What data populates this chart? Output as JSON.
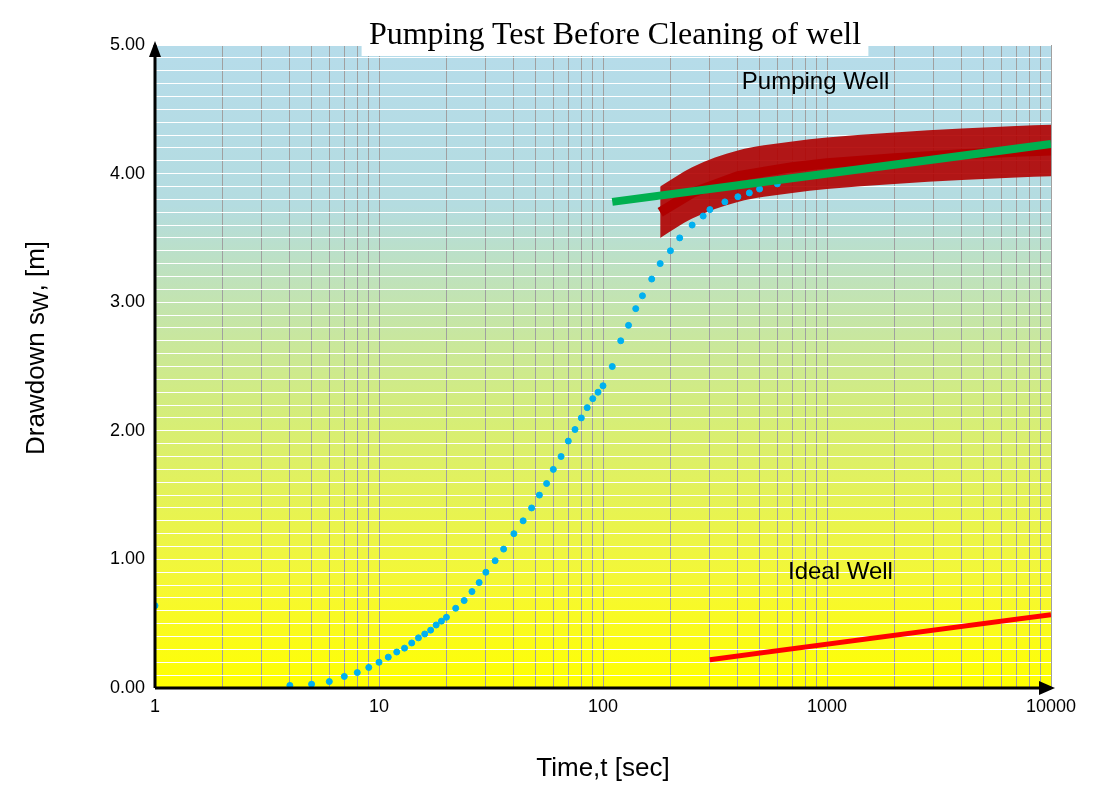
{
  "chart_data": {
    "type": "scatter",
    "title": "Pumping Test Before Cleaning of well",
    "xlabel": "Time,t [sec]",
    "ylabel": "Drawdown s$_{W}$, [m]",
    "log": "x",
    "grid": true,
    "legend": false,
    "xlim": [
      1,
      10000
    ],
    "ylim": [
      0,
      5
    ],
    "xticks": [
      1,
      {
        "value": 2,
        "label": null
      },
      {
        "value": 3,
        "label": null
      },
      {
        "value": 4,
        "label": null
      },
      {
        "value": 5,
        "label": null
      },
      {
        "value": 6,
        "label": null
      },
      {
        "value": 7,
        "label": null
      },
      {
        "value": 8,
        "label": null
      },
      {
        "value": 9,
        "label": null
      },
      10,
      {
        "value": 20,
        "label": null
      },
      {
        "value": 30,
        "label": null
      },
      {
        "value": 40,
        "label": null
      },
      {
        "value": 50,
        "label": null
      },
      {
        "value": 60,
        "label": null
      },
      {
        "value": 70,
        "label": null
      },
      {
        "value": 80,
        "label": null
      },
      {
        "value": 90,
        "label": null
      },
      100,
      {
        "value": 200,
        "label": null
      },
      {
        "value": 300,
        "label": null
      },
      {
        "value": 400,
        "label": null
      },
      {
        "value": 500,
        "label": null
      },
      {
        "value": 600,
        "label": null
      },
      {
        "value": 700,
        "label": null
      },
      {
        "value": 800,
        "label": null
      },
      {
        "value": 900,
        "label": null
      },
      1000,
      {
        "value": 2000,
        "label": null
      },
      {
        "value": 3000,
        "label": null
      },
      {
        "value": 4000,
        "label": null
      },
      {
        "value": 5000,
        "label": null
      },
      {
        "value": 6000,
        "label": null
      },
      {
        "value": 7000,
        "label": null
      },
      {
        "value": 8000,
        "label": null
      },
      {
        "value": 9000,
        "label": null
      },
      10000
    ],
    "yticks": [
      {
        "value": 0,
        "label": "0.00"
      },
      {
        "value": 0.1,
        "label": null
      },
      {
        "value": 0.2,
        "label": null
      },
      {
        "value": 0.3,
        "label": null
      },
      {
        "value": 0.4,
        "label": null
      },
      {
        "value": 0.5,
        "label": null
      },
      {
        "value": 0.6,
        "label": null
      },
      {
        "value": 0.7,
        "label": null
      },
      {
        "value": 0.8,
        "label": null
      },
      {
        "value": 0.9,
        "label": null
      },
      {
        "value": 1,
        "label": "1.00"
      },
      {
        "value": 1.1,
        "label": null
      },
      {
        "value": 1.2,
        "label": null
      },
      {
        "value": 1.3,
        "label": null
      },
      {
        "value": 1.4,
        "label": null
      },
      {
        "value": 1.5,
        "label": null
      },
      {
        "value": 1.6,
        "label": null
      },
      {
        "value": 1.7,
        "label": null
      },
      {
        "value": 1.8,
        "label": null
      },
      {
        "value": 1.9,
        "label": null
      },
      {
        "value": 2,
        "label": "2.00"
      },
      {
        "value": 2.1,
        "label": null
      },
      {
        "value": 2.2,
        "label": null
      },
      {
        "value": 2.3,
        "label": null
      },
      {
        "value": 2.4,
        "label": null
      },
      {
        "value": 2.5,
        "label": null
      },
      {
        "value": 2.6,
        "label": null
      },
      {
        "value": 2.7,
        "label": null
      },
      {
        "value": 2.8,
        "label": null
      },
      {
        "value": 2.9,
        "label": null
      },
      {
        "value": 3,
        "label": "3.00"
      },
      {
        "value": 3.1,
        "label": null
      },
      {
        "value": 3.2,
        "label": null
      },
      {
        "value": 3.3,
        "label": null
      },
      {
        "value": 3.4,
        "label": null
      },
      {
        "value": 3.5,
        "label": null
      },
      {
        "value": 3.6,
        "label": null
      },
      {
        "value": 3.7,
        "label": null
      },
      {
        "value": 3.8,
        "label": null
      },
      {
        "value": 3.9,
        "label": null
      },
      {
        "value": 4,
        "label": "4.00"
      },
      {
        "value": 4.1,
        "label": null
      },
      {
        "value": 4.2,
        "label": null
      },
      {
        "value": 4.3,
        "label": null
      },
      {
        "value": 4.4,
        "label": null
      },
      {
        "value": 4.5,
        "label": null
      },
      {
        "value": 4.6,
        "label": null
      },
      {
        "value": 4.7,
        "label": null
      },
      {
        "value": 4.8,
        "label": null
      },
      {
        "value": 4.9,
        "label": null
      },
      {
        "value": 5,
        "label": "5.00"
      }
    ],
    "series": [
      {
        "name": "Pumping Well",
        "type": "line",
        "color": "#b00000",
        "x": [
          180,
          250,
          400,
          700,
          1000,
          2000,
          4000,
          7000,
          10000
        ],
        "values": [
          3.7,
          3.85,
          3.98,
          4.05,
          4.08,
          4.12,
          4.15,
          4.17,
          4.18
        ],
        "lower": [
          3.5,
          3.65,
          3.78,
          3.85,
          3.88,
          3.92,
          3.95,
          3.97,
          3.98
        ],
        "upper": [
          3.9,
          4.05,
          4.18,
          4.25,
          4.28,
          4.32,
          4.35,
          4.37,
          4.38
        ]
      },
      {
        "color": "#00b0f0",
        "marker": "circle",
        "x": [
          1,
          4,
          5,
          6,
          7,
          8,
          9,
          10,
          11,
          12,
          13,
          14,
          15,
          16,
          17,
          18,
          19,
          20,
          22,
          24,
          26,
          28,
          30,
          33,
          36,
          40,
          44,
          48,
          52,
          56,
          60,
          65,
          70,
          75,
          80,
          85,
          90,
          95,
          100,
          110,
          120,
          130,
          140,
          150,
          165,
          180,
          200,
          220,
          250,
          280,
          300,
          350,
          400,
          450,
          500,
          600
        ],
        "values": [
          0.64,
          0.02,
          0.03,
          0.05,
          0.09,
          0.12,
          0.16,
          0.2,
          0.24,
          0.28,
          0.31,
          0.35,
          0.39,
          0.42,
          0.45,
          0.49,
          0.52,
          0.55,
          0.62,
          0.68,
          0.75,
          0.82,
          0.9,
          0.99,
          1.08,
          1.2,
          1.3,
          1.4,
          1.5,
          1.59,
          1.7,
          1.8,
          1.92,
          2.01,
          2.1,
          2.18,
          2.25,
          2.3,
          2.35,
          2.5,
          2.7,
          2.82,
          2.95,
          3.05,
          3.18,
          3.3,
          3.4,
          3.5,
          3.6,
          3.67,
          3.72,
          3.78,
          3.82,
          3.85,
          3.88,
          3.92
        ]
      },
      {
        "type": "line",
        "color": "#00b050",
        "x": [
          110,
          10000
        ],
        "values": [
          3.78,
          4.23
        ]
      },
      {
        "name": "Ideal Well",
        "type": "line",
        "color": "#ff0000",
        "x": [
          300,
          10000
        ],
        "values": [
          0.22,
          0.57
        ]
      }
    ]
  }
}
